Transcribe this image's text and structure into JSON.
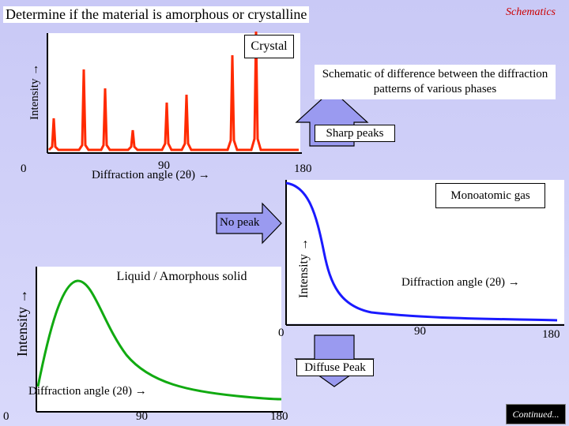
{
  "header": {
    "title": "Determine if the material is amorphous or crystalline",
    "schematics_label": "Schematics"
  },
  "crystal_panel": {
    "label": "Crystal",
    "ylabel": "Intensity →",
    "xlabel": "Diffraction angle (2θ) →",
    "tick_0": "0",
    "tick_90": "90",
    "tick_180": "180"
  },
  "callouts": {
    "schematic_description": "Schematic of difference between the diffraction patterns of various phases",
    "sharp_peaks": "Sharp peaks",
    "no_peak": "No peak",
    "diffuse_peak": "Diffuse Peak"
  },
  "gas_panel": {
    "label": "Monoatomic gas",
    "ylabel": "Intensity →",
    "xlabel": "Diffraction angle (2θ) →",
    "tick_0": "0",
    "tick_90": "90",
    "tick_180": "180"
  },
  "liquid_panel": {
    "label": "Liquid / Amorphous solid",
    "ylabel": "Intensity →",
    "xlabel": "Diffraction angle (2θ) →",
    "tick_0": "0",
    "tick_90": "90",
    "tick_180": "180"
  },
  "footer": {
    "continued_label": "Continued..."
  },
  "colors": {
    "crystal_curve": "#ff2a00",
    "gas_curve": "#1a1aff",
    "liquid_curve": "#11aa11",
    "callout_fill": "#9a9af0",
    "background": "#cfcff8"
  }
}
